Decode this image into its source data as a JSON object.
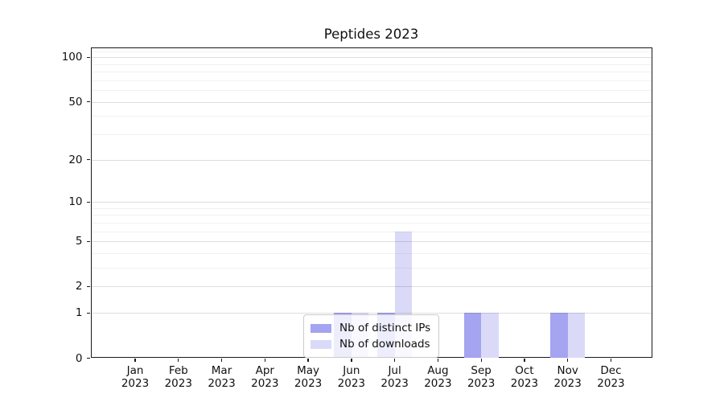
{
  "chart_data": {
    "type": "bar",
    "title": "Peptides 2023",
    "categories": [
      {
        "month": "Jan",
        "year": "2023"
      },
      {
        "month": "Feb",
        "year": "2023"
      },
      {
        "month": "Mar",
        "year": "2023"
      },
      {
        "month": "Apr",
        "year": "2023"
      },
      {
        "month": "May",
        "year": "2023"
      },
      {
        "month": "Jun",
        "year": "2023"
      },
      {
        "month": "Jul",
        "year": "2023"
      },
      {
        "month": "Aug",
        "year": "2023"
      },
      {
        "month": "Sep",
        "year": "2023"
      },
      {
        "month": "Oct",
        "year": "2023"
      },
      {
        "month": "Nov",
        "year": "2023"
      },
      {
        "month": "Dec",
        "year": "2023"
      }
    ],
    "series": [
      {
        "name": "Nb of distinct IPs",
        "color": "#a4a4f0",
        "values": [
          0,
          0,
          0,
          0,
          0,
          1,
          1,
          0,
          1,
          0,
          1,
          0
        ]
      },
      {
        "name": "Nb of downloads",
        "color": "#dadaf8",
        "values": [
          0,
          0,
          0,
          0,
          0,
          1,
          6,
          0,
          1,
          0,
          1,
          0
        ]
      }
    ],
    "xlabel": "",
    "ylabel": "",
    "yscale": "log1p",
    "ylim": [
      0,
      115
    ],
    "major_yticks": [
      0,
      1,
      2,
      5,
      10,
      20,
      50,
      100
    ],
    "minor_yticks": [
      3,
      4,
      6,
      7,
      8,
      9,
      30,
      40,
      60,
      70,
      80,
      90,
      110
    ],
    "grid": true,
    "legend_position": "lower center"
  }
}
